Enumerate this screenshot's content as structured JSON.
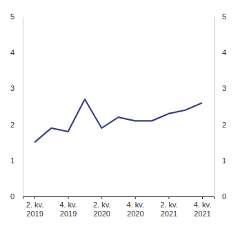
{
  "chart_data": {
    "type": "line",
    "categories": [
      "2. kv. 2019",
      null,
      "4. kv. 2019",
      null,
      "2. kv. 2020",
      null,
      "4. kv. 2020",
      null,
      "2. kv. 2021",
      null,
      "4. kv. 2021"
    ],
    "values": [
      1.5,
      1.9,
      1.8,
      2.7,
      1.9,
      2.2,
      2.1,
      2.1,
      2.3,
      2.4,
      2.6
    ],
    "color": "#3b3d8f",
    "ylim": [
      0,
      5
    ],
    "yticks": [
      0,
      1,
      2,
      3,
      4,
      5
    ],
    "y2lim": [
      0,
      5
    ],
    "y2ticks": [
      0,
      1,
      2,
      3,
      4,
      5
    ],
    "grid": false
  }
}
